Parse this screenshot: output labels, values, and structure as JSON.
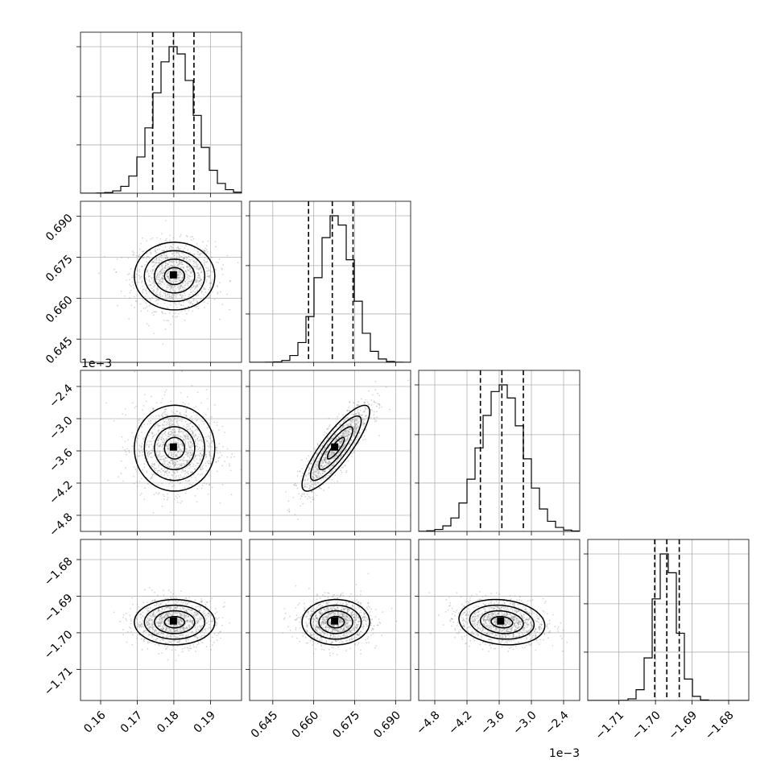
{
  "chart_data": {
    "type": "corner",
    "parameters": [
      {
        "ticks": [
          0.16,
          0.17,
          0.18,
          0.19
        ],
        "tick_labels": [
          "0.16",
          "0.17",
          "0.18",
          "0.19"
        ],
        "range": [
          0.1545,
          0.1985
        ],
        "mean": 0.1802,
        "std": 0.0055,
        "quantiles": [
          0.1742,
          0.1799,
          0.1855
        ],
        "scale_label": ""
      },
      {
        "ticks": [
          0.645,
          0.66,
          0.675,
          0.69
        ],
        "tick_labels": [
          "0.645",
          "0.660",
          "0.675",
          "0.690"
        ],
        "range": [
          0.6365,
          0.6955
        ],
        "mean": 0.6681,
        "std": 0.0062,
        "quantiles": [
          0.6581,
          0.6668,
          0.6744
        ],
        "scale_label": ""
      },
      {
        "ticks": [
          -4.8,
          -4.2,
          -3.6,
          -3.0,
          -2.4
        ],
        "tick_labels": [
          "−4.8",
          "−4.2",
          "−3.6",
          "−3.0",
          "−2.4"
        ],
        "range": [
          -5.1,
          -2.1
        ],
        "mean": -3.55,
        "std": 0.4,
        "quantiles": [
          -3.95,
          -3.55,
          -3.15
        ],
        "scale_label": "1e−3"
      },
      {
        "ticks": [
          -1.71,
          -1.7,
          -1.69,
          -1.68
        ],
        "tick_labels": [
          "−1.71",
          "−1.70",
          "−1.69",
          "−1.68"
        ],
        "range": [
          -1.7185,
          -1.6745
        ],
        "mean": -1.6971,
        "std": 0.0031,
        "quantiles": [
          -1.7002,
          -1.6969,
          -1.6935
        ],
        "scale_label": ""
      }
    ],
    "correlations": [
      {
        "row": 1,
        "col": 0,
        "rho": 0.0
      },
      {
        "row": 2,
        "col": 0,
        "rho": 0.0
      },
      {
        "row": 2,
        "col": 1,
        "rho": 0.85
      },
      {
        "row": 3,
        "col": 0,
        "rho": 0.0
      },
      {
        "row": 3,
        "col": 1,
        "rho": 0.0
      },
      {
        "row": 3,
        "col": 2,
        "rho": -0.15
      }
    ],
    "hist_bins": 20,
    "contour_levels_sigma": [
      0.5,
      1.0,
      1.5,
      2.0
    ],
    "grid": true,
    "quantile_line_style": "dashed",
    "colors": {
      "line": "#000000",
      "grid": "#b0b0b0",
      "points": "#888888"
    }
  }
}
